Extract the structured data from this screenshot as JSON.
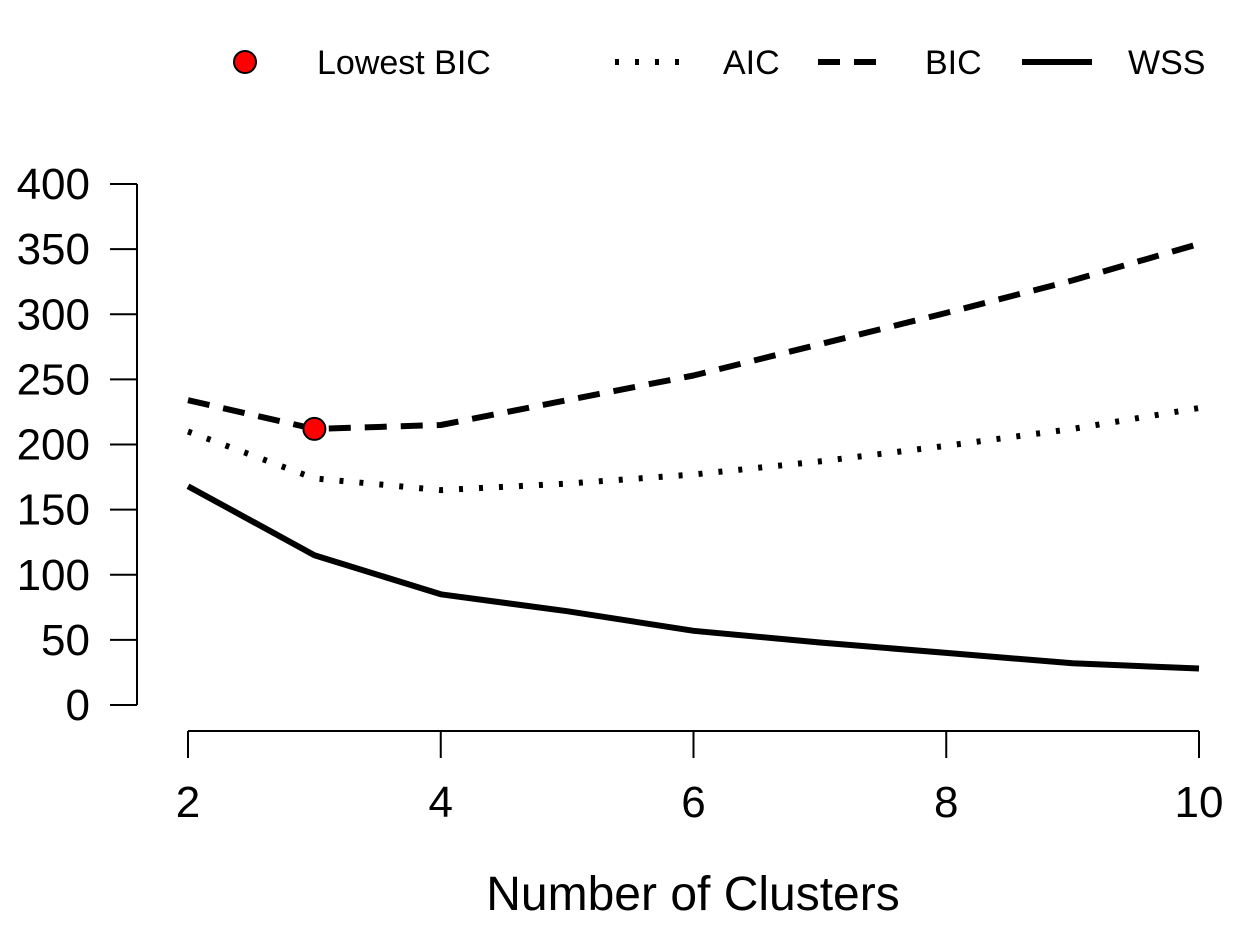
{
  "chart_data": {
    "type": "line",
    "title": "",
    "xlabel": "Number of Clusters",
    "ylabel": "",
    "xlim": [
      2,
      10
    ],
    "ylim": [
      0,
      400
    ],
    "xticks": [
      2,
      4,
      6,
      8,
      10
    ],
    "yticks": [
      0,
      50,
      100,
      150,
      200,
      250,
      300,
      350,
      400
    ],
    "x": [
      2,
      3,
      4,
      5,
      6,
      7,
      8,
      9,
      10
    ],
    "series": [
      {
        "name": "AIC",
        "style": "dotted",
        "color": "#000000",
        "values": [
          210,
          174,
          165,
          170,
          177,
          187,
          199,
          212,
          228
        ]
      },
      {
        "name": "BIC",
        "style": "dashed",
        "color": "#000000",
        "values": [
          234,
          212,
          215,
          234,
          253,
          277,
          301,
          326,
          354
        ]
      },
      {
        "name": "WSS",
        "style": "solid",
        "color": "#000000",
        "values": [
          168,
          115,
          85,
          72,
          57,
          48,
          40,
          32,
          28
        ]
      }
    ],
    "highlight": {
      "label": "Lowest BIC",
      "x": 3,
      "y": 212,
      "color": "#ff0000"
    },
    "legend": {
      "placement": "top",
      "entries": [
        "Lowest BIC",
        "AIC",
        "BIC",
        "WSS"
      ]
    },
    "grid": false
  }
}
